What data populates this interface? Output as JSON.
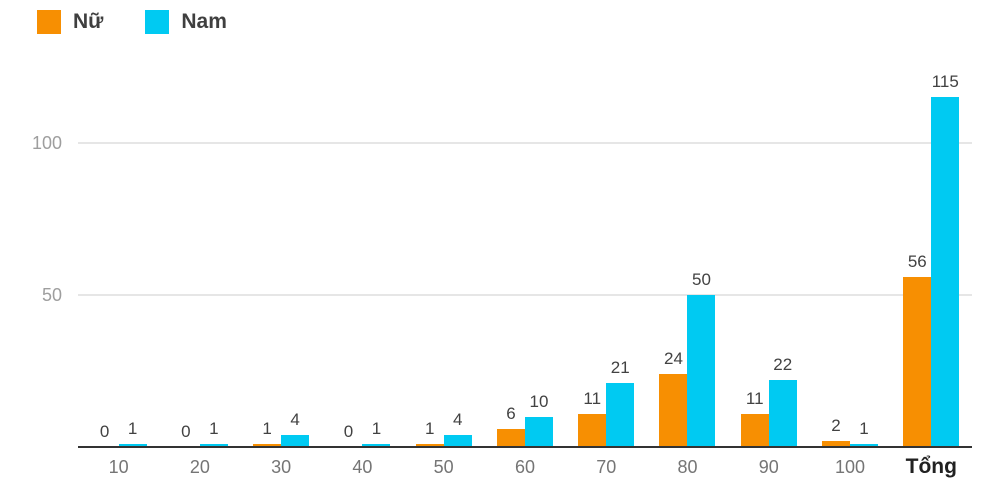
{
  "chart_data": {
    "type": "bar",
    "title": "",
    "xlabel": "",
    "ylabel": "",
    "categories": [
      "10",
      "20",
      "30",
      "40",
      "50",
      "60",
      "70",
      "80",
      "90",
      "100",
      "Tổng"
    ],
    "series": [
      {
        "name": "Nữ",
        "color": "#F78F02",
        "values": [
          0,
          0,
          1,
          0,
          1,
          6,
          11,
          24,
          11,
          2,
          56
        ]
      },
      {
        "name": "Nam",
        "color": "#00CAF2",
        "values": [
          1,
          1,
          4,
          1,
          4,
          10,
          21,
          50,
          22,
          1,
          115
        ]
      }
    ],
    "value_labels": true,
    "yticks": [
      50,
      100
    ],
    "ylim": [
      0,
      124
    ],
    "grid": true,
    "legend_position": "top-left",
    "emphasized_category": "Tổng",
    "colors": {
      "axis_line": "#333333",
      "gridline": "#e6e6e6",
      "y_tick_label": "#9e9e9e",
      "x_tick_label": "#757575",
      "x_tick_label_emphasized": "#212121",
      "value_label": "#424242",
      "background": "#ffffff"
    }
  }
}
